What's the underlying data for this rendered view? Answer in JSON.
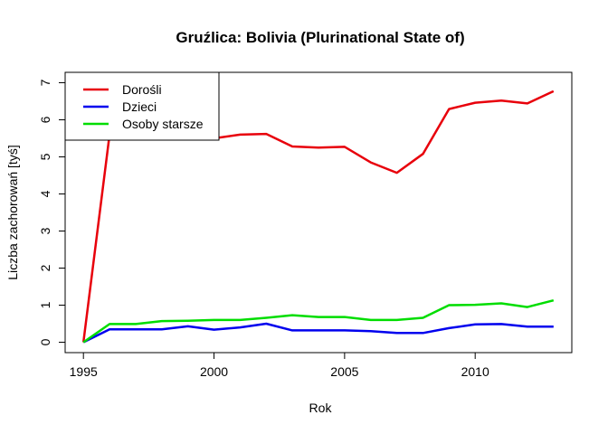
{
  "chart_data": {
    "type": "line",
    "title": "Gruźlica: Bolivia (Plurinational State of)",
    "xlabel": "Rok",
    "ylabel": "Liczba zachorowań [tyś]",
    "xlim": [
      1994.3,
      2013.7
    ],
    "ylim": [
      -0.28,
      7.28
    ],
    "xticks": [
      1995,
      2000,
      2005,
      2010
    ],
    "yticks": [
      0,
      1,
      2,
      3,
      4,
      5,
      6,
      7
    ],
    "x": [
      1995,
      1996,
      1997,
      1998,
      1999,
      2000,
      2001,
      2002,
      2003,
      2004,
      2005,
      2006,
      2007,
      2008,
      2009,
      2010,
      2011,
      2012,
      2013
    ],
    "legend": "top-left",
    "series": [
      {
        "name": "Dorośli",
        "color": "#e8000b",
        "values": [
          0.0,
          5.6,
          5.6,
          5.6,
          5.5,
          5.5,
          5.6,
          5.62,
          5.28,
          5.25,
          5.27,
          4.85,
          4.57,
          5.08,
          6.29,
          6.46,
          6.52,
          6.44,
          6.77
        ]
      },
      {
        "name": "Dzieci",
        "color": "#0000ee",
        "values": [
          0.0,
          0.35,
          0.35,
          0.35,
          0.43,
          0.34,
          0.4,
          0.5,
          0.32,
          0.32,
          0.32,
          0.3,
          0.25,
          0.25,
          0.38,
          0.48,
          0.49,
          0.42,
          0.42
        ]
      },
      {
        "name": "Osoby starsze",
        "color": "#00dd00",
        "values": [
          0.0,
          0.49,
          0.49,
          0.57,
          0.58,
          0.6,
          0.6,
          0.66,
          0.73,
          0.68,
          0.68,
          0.6,
          0.6,
          0.66,
          1.0,
          1.01,
          1.05,
          0.95,
          1.13
        ]
      }
    ]
  }
}
